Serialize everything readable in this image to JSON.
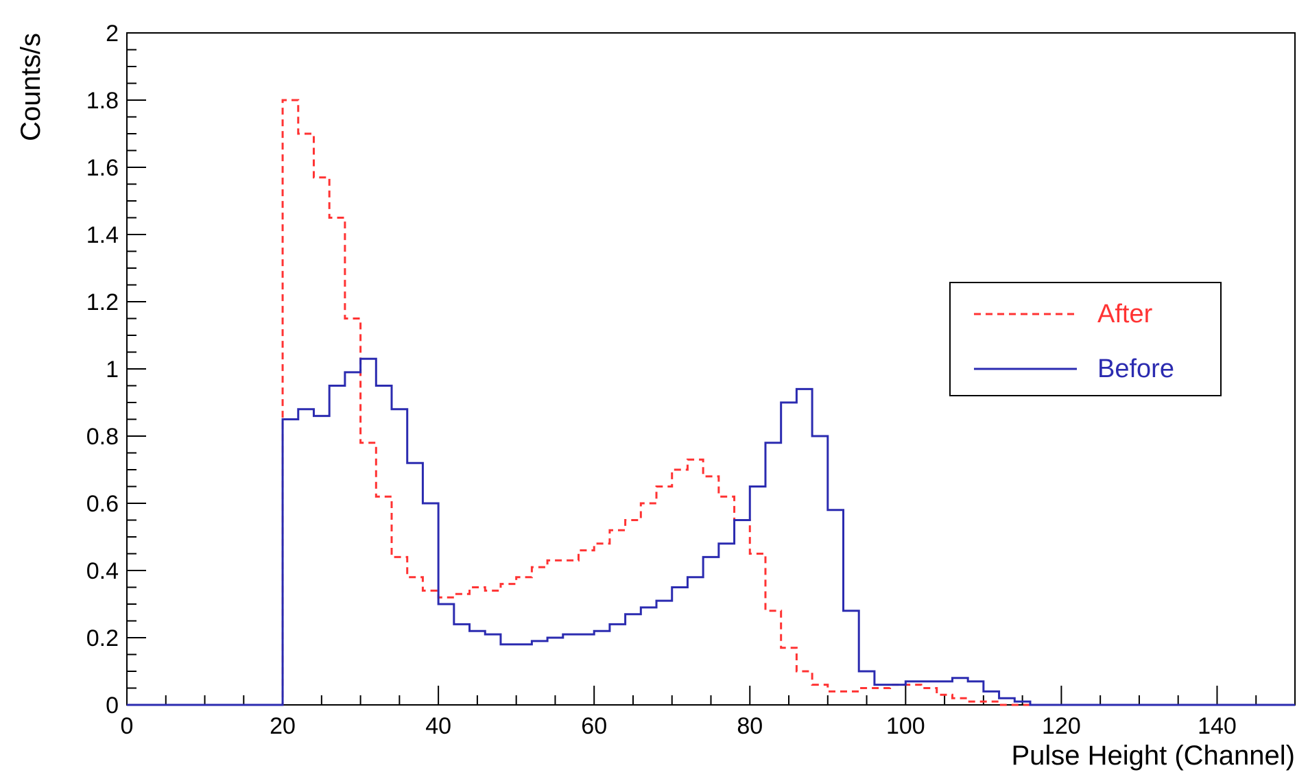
{
  "chart_data": {
    "type": "line",
    "title": "",
    "xlabel": "Pulse Height (Channel)",
    "ylabel": "Counts/s",
    "xlim": [
      0,
      150
    ],
    "ylim": [
      0,
      2
    ],
    "x_ticks": [
      "0",
      "20",
      "40",
      "60",
      "80",
      "100",
      "120",
      "140"
    ],
    "y_ticks": [
      "0",
      "0.2",
      "0.4",
      "0.6",
      "0.8",
      "1",
      "1.2",
      "1.4",
      "1.6",
      "1.8",
      "2"
    ],
    "bin_width": 2,
    "grid": false,
    "legend_position": "right",
    "series": [
      {
        "name": "After",
        "color": "#ff3333",
        "style": "dashed",
        "bin_starts": [
          0,
          2,
          4,
          6,
          8,
          10,
          12,
          14,
          16,
          18,
          20,
          22,
          24,
          26,
          28,
          30,
          32,
          34,
          36,
          38,
          40,
          42,
          44,
          46,
          48,
          50,
          52,
          54,
          56,
          58,
          60,
          62,
          64,
          66,
          68,
          70,
          72,
          74,
          76,
          78,
          80,
          82,
          84,
          86,
          88,
          90,
          92,
          94,
          96,
          98,
          100,
          102,
          104,
          106,
          108,
          110,
          112,
          114,
          116,
          118,
          120,
          122,
          124,
          126,
          128,
          130,
          132,
          134,
          136,
          138,
          140,
          142,
          144,
          146,
          148
        ],
        "values": [
          0,
          0,
          0,
          0,
          0,
          0,
          0,
          0,
          0,
          0,
          1.8,
          1.7,
          1.57,
          1.45,
          1.15,
          0.78,
          0.62,
          0.44,
          0.38,
          0.34,
          0.32,
          0.33,
          0.35,
          0.34,
          0.36,
          0.38,
          0.41,
          0.43,
          0.43,
          0.46,
          0.48,
          0.52,
          0.55,
          0.6,
          0.65,
          0.7,
          0.73,
          0.68,
          0.62,
          0.55,
          0.45,
          0.28,
          0.17,
          0.1,
          0.06,
          0.04,
          0.04,
          0.05,
          0.05,
          0.06,
          0.06,
          0.05,
          0.03,
          0.02,
          0.01,
          0.01,
          0,
          0,
          0,
          0,
          0,
          0,
          0,
          0,
          0,
          0,
          0,
          0,
          0,
          0,
          0,
          0,
          0,
          0,
          0
        ]
      },
      {
        "name": "Before",
        "color": "#2b2bb0",
        "style": "solid",
        "bin_starts": [
          0,
          2,
          4,
          6,
          8,
          10,
          12,
          14,
          16,
          18,
          20,
          22,
          24,
          26,
          28,
          30,
          32,
          34,
          36,
          38,
          40,
          42,
          44,
          46,
          48,
          50,
          52,
          54,
          56,
          58,
          60,
          62,
          64,
          66,
          68,
          70,
          72,
          74,
          76,
          78,
          80,
          82,
          84,
          86,
          88,
          90,
          92,
          94,
          96,
          98,
          100,
          102,
          104,
          106,
          108,
          110,
          112,
          114,
          116,
          118,
          120,
          122,
          124,
          126,
          128,
          130,
          132,
          134,
          136,
          138,
          140,
          142,
          144,
          146,
          148
        ],
        "values": [
          0,
          0,
          0,
          0,
          0,
          0,
          0,
          0,
          0,
          0,
          0.85,
          0.88,
          0.86,
          0.95,
          0.99,
          1.03,
          0.95,
          0.88,
          0.72,
          0.6,
          0.3,
          0.24,
          0.22,
          0.21,
          0.18,
          0.18,
          0.19,
          0.2,
          0.21,
          0.21,
          0.22,
          0.24,
          0.27,
          0.29,
          0.31,
          0.35,
          0.38,
          0.44,
          0.48,
          0.55,
          0.65,
          0.78,
          0.9,
          0.94,
          0.8,
          0.58,
          0.28,
          0.1,
          0.06,
          0.06,
          0.07,
          0.07,
          0.07,
          0.08,
          0.07,
          0.04,
          0.02,
          0.01,
          0,
          0,
          0,
          0,
          0,
          0,
          0,
          0,
          0,
          0,
          0,
          0,
          0,
          0,
          0,
          0,
          0
        ]
      }
    ]
  }
}
